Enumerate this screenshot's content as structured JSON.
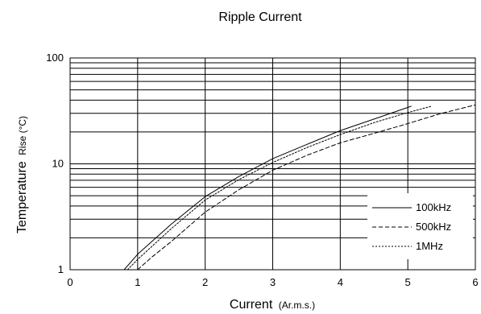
{
  "chart_data": {
    "type": "line",
    "title": "Ripple Current",
    "xlabel": {
      "main": "Current",
      "sub": "(Ar.m.s.)"
    },
    "ylabel": {
      "main": "Temperature",
      "sub": "Rise (°C)"
    },
    "xlim": [
      0,
      6
    ],
    "ylim": [
      1,
      100
    ],
    "yscale": "log",
    "xticks": [
      "0",
      "1",
      "2",
      "3",
      "4",
      "5",
      "6"
    ],
    "yticks": [
      "1",
      "10",
      "100"
    ],
    "grid": true,
    "legend_position": "bottom-right",
    "series": [
      {
        "name": "100kHz",
        "line_style": "solid",
        "points": [
          [
            0.8,
            1.0
          ],
          [
            1.0,
            1.4
          ],
          [
            1.5,
            2.7
          ],
          [
            2.0,
            4.9
          ],
          [
            2.5,
            7.6
          ],
          [
            3.0,
            11.2
          ],
          [
            3.5,
            15.2
          ],
          [
            4.0,
            20.6
          ],
          [
            4.5,
            26.5
          ],
          [
            5.05,
            35.0
          ]
        ]
      },
      {
        "name": "500kHz",
        "line_style": "dashed",
        "points": [
          [
            1.0,
            1.0
          ],
          [
            1.2,
            1.3
          ],
          [
            1.5,
            1.85
          ],
          [
            2.0,
            3.5
          ],
          [
            2.5,
            5.7
          ],
          [
            3.0,
            8.7
          ],
          [
            3.5,
            12.0
          ],
          [
            4.0,
            15.8
          ],
          [
            4.5,
            19.4
          ],
          [
            5.0,
            24.0
          ],
          [
            5.5,
            30.0
          ],
          [
            6.0,
            36.0
          ]
        ]
      },
      {
        "name": "1MHz",
        "line_style": "dotted",
        "points": [
          [
            0.85,
            1.0
          ],
          [
            1.0,
            1.25
          ],
          [
            1.5,
            2.45
          ],
          [
            2.0,
            4.55
          ],
          [
            2.5,
            7.1
          ],
          [
            3.0,
            10.3
          ],
          [
            3.5,
            14.2
          ],
          [
            4.0,
            18.9
          ],
          [
            4.5,
            24.5
          ],
          [
            5.0,
            30.5
          ],
          [
            5.35,
            35.0
          ]
        ]
      }
    ]
  }
}
